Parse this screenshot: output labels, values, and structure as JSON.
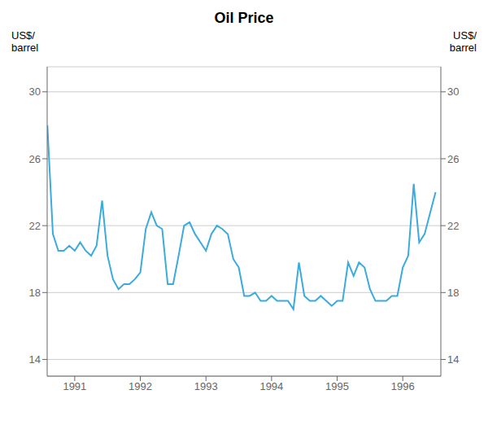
{
  "chart_data": {
    "type": "line",
    "title": "Oil Price",
    "ylabel": "US$/\nbarrel",
    "y2label": "US$/\nbarrel",
    "color": "#3aabdc",
    "grid": "y",
    "xlim": [
      1990.58,
      1996.58
    ],
    "xticks": [
      1991,
      1992,
      1993,
      1994,
      1995,
      1996
    ],
    "ylim": [
      13.0,
      31.5
    ],
    "yticks": [
      14,
      18,
      22,
      26,
      30
    ],
    "y2lim": [
      13.0,
      31.5
    ],
    "y2ticks": [
      14,
      18,
      22,
      26,
      30
    ],
    "x": [
      1990.583,
      1990.667,
      1990.75,
      1990.833,
      1990.917,
      1991.0,
      1991.083,
      1991.167,
      1991.25,
      1991.333,
      1991.417,
      1991.5,
      1991.583,
      1991.667,
      1991.75,
      1991.833,
      1991.917,
      1992.0,
      1992.083,
      1992.167,
      1992.25,
      1992.333,
      1992.417,
      1992.5,
      1992.583,
      1992.667,
      1992.75,
      1992.833,
      1992.917,
      1993.0,
      1993.083,
      1993.167,
      1993.25,
      1993.333,
      1993.417,
      1993.5,
      1993.583,
      1993.667,
      1993.75,
      1993.833,
      1993.917,
      1994.0,
      1994.083,
      1994.167,
      1994.25,
      1994.333,
      1994.417,
      1994.5,
      1994.583,
      1994.667,
      1994.75,
      1994.833,
      1994.917,
      1995.0,
      1995.083,
      1995.167,
      1995.25,
      1995.333,
      1995.417,
      1995.5,
      1995.583,
      1995.667,
      1995.75,
      1995.833,
      1995.917,
      1996.0,
      1996.083,
      1996.167,
      1996.25,
      1996.333,
      1996.5
    ],
    "values": [
      28.0,
      21.5,
      20.5,
      20.5,
      20.8,
      20.5,
      21.0,
      20.5,
      20.2,
      20.8,
      23.5,
      20.2,
      18.8,
      18.2,
      18.5,
      18.5,
      18.8,
      19.2,
      21.8,
      22.8,
      22.0,
      21.8,
      18.5,
      18.5,
      20.2,
      22.0,
      22.2,
      21.5,
      21.0,
      20.5,
      21.5,
      22.0,
      21.8,
      21.5,
      20.0,
      19.5,
      17.8,
      17.8,
      18.0,
      17.5,
      17.5,
      17.8,
      17.5,
      17.5,
      17.5,
      17.0,
      19.8,
      17.8,
      17.5,
      17.5,
      17.8,
      17.5,
      17.2,
      17.5,
      17.5,
      19.8,
      19.0,
      19.8,
      19.5,
      18.2,
      17.5,
      17.5,
      17.5,
      17.8,
      17.8,
      19.5,
      20.2,
      24.5,
      21.0,
      21.5,
      24.0
    ]
  }
}
